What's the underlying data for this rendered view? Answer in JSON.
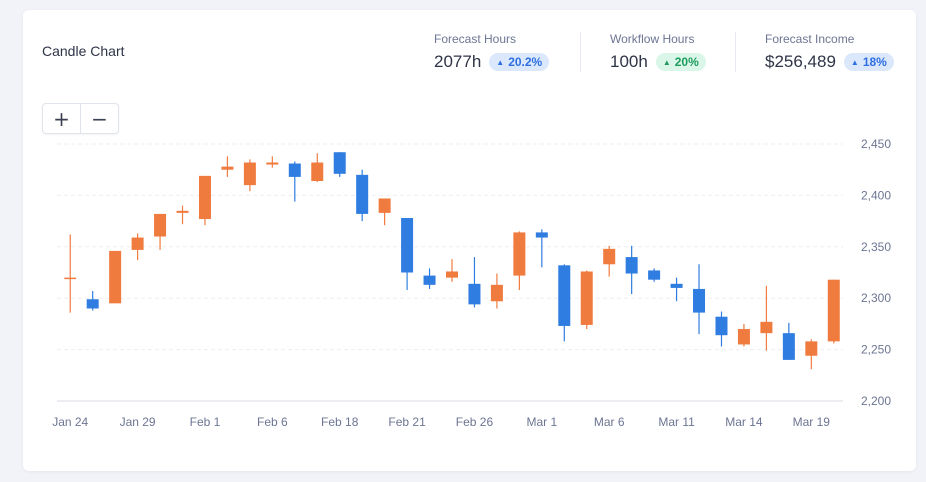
{
  "card": {
    "title": "Candle Chart"
  },
  "stats": [
    {
      "label": "Forecast Hours",
      "value": "2077h",
      "change": "20.2%",
      "color": "blue"
    },
    {
      "label": "Workflow Hours",
      "value": "100h",
      "change": "20%",
      "color": "green"
    },
    {
      "label": "Forecast Income",
      "value": "$256,489",
      "change": "18%",
      "color": "blue"
    }
  ],
  "zoom": {
    "in_label": "+",
    "out_label": "−"
  },
  "colors": {
    "up": "#f07b3f",
    "down": "#2f7de1",
    "grid": "#eceef3",
    "axis": "#d8dce5"
  },
  "chart_data": {
    "type": "candlestick",
    "y_ticks": [
      "2,200",
      "2,250",
      "2,300",
      "2,350",
      "2,400",
      "2,450"
    ],
    "ylim": [
      2200,
      2450
    ],
    "x_tick_labels": [
      "Jan 24",
      "Jan 29",
      "Feb 1",
      "Feb 6",
      "Feb 18",
      "Feb 21",
      "Feb 26",
      "Mar 1",
      "Mar 6",
      "Mar 11",
      "Mar 14",
      "Mar 19"
    ],
    "candles": [
      {
        "open": 2320,
        "close": 2320,
        "high": 2362,
        "low": 2286
      },
      {
        "open": 2299,
        "close": 2290,
        "high": 2307,
        "low": 2288
      },
      {
        "open": 2295,
        "close": 2346,
        "high": 2346,
        "low": 2295
      },
      {
        "open": 2347,
        "close": 2359,
        "high": 2363,
        "low": 2337
      },
      {
        "open": 2360,
        "close": 2382,
        "high": 2382,
        "low": 2347
      },
      {
        "open": 2383,
        "close": 2385,
        "high": 2390,
        "low": 2372
      },
      {
        "open": 2377,
        "close": 2419,
        "high": 2419,
        "low": 2371
      },
      {
        "open": 2425,
        "close": 2428,
        "high": 2438,
        "low": 2418
      },
      {
        "open": 2410,
        "close": 2432,
        "high": 2435,
        "low": 2404
      },
      {
        "open": 2430,
        "close": 2432,
        "high": 2438,
        "low": 2427
      },
      {
        "open": 2431,
        "close": 2418,
        "high": 2433,
        "low": 2394
      },
      {
        "open": 2414,
        "close": 2432,
        "high": 2441,
        "low": 2413
      },
      {
        "open": 2442,
        "close": 2421,
        "high": 2442,
        "low": 2418
      },
      {
        "open": 2420,
        "close": 2382,
        "high": 2425,
        "low": 2375
      },
      {
        "open": 2383,
        "close": 2397,
        "high": 2397,
        "low": 2371
      },
      {
        "open": 2378,
        "close": 2325,
        "high": 2378,
        "low": 2308
      },
      {
        "open": 2322,
        "close": 2313,
        "high": 2329,
        "low": 2309
      },
      {
        "open": 2320,
        "close": 2326,
        "high": 2338,
        "low": 2316
      },
      {
        "open": 2314,
        "close": 2294,
        "high": 2340,
        "low": 2291
      },
      {
        "open": 2297,
        "close": 2313,
        "high": 2324,
        "low": 2290
      },
      {
        "open": 2322,
        "close": 2364,
        "high": 2365,
        "low": 2308
      },
      {
        "open": 2364,
        "close": 2359,
        "high": 2367,
        "low": 2330
      },
      {
        "open": 2332,
        "close": 2273,
        "high": 2333,
        "low": 2258
      },
      {
        "open": 2274,
        "close": 2326,
        "high": 2327,
        "low": 2270
      },
      {
        "open": 2333,
        "close": 2348,
        "high": 2351,
        "low": 2321
      },
      {
        "open": 2340,
        "close": 2324,
        "high": 2351,
        "low": 2304
      },
      {
        "open": 2327,
        "close": 2318,
        "high": 2329,
        "low": 2316
      },
      {
        "open": 2314,
        "close": 2310,
        "high": 2320,
        "low": 2297
      },
      {
        "open": 2309,
        "close": 2286,
        "high": 2333,
        "low": 2265
      },
      {
        "open": 2282,
        "close": 2264,
        "high": 2287,
        "low": 2253
      },
      {
        "open": 2255,
        "close": 2270,
        "high": 2275,
        "low": 2253
      },
      {
        "open": 2266,
        "close": 2277,
        "high": 2312,
        "low": 2249
      },
      {
        "open": 2266,
        "close": 2240,
        "high": 2276,
        "low": 2240
      },
      {
        "open": 2244,
        "close": 2258,
        "high": 2260,
        "low": 2231
      },
      {
        "open": 2258,
        "close": 2318,
        "high": 2318,
        "low": 2256
      }
    ]
  }
}
